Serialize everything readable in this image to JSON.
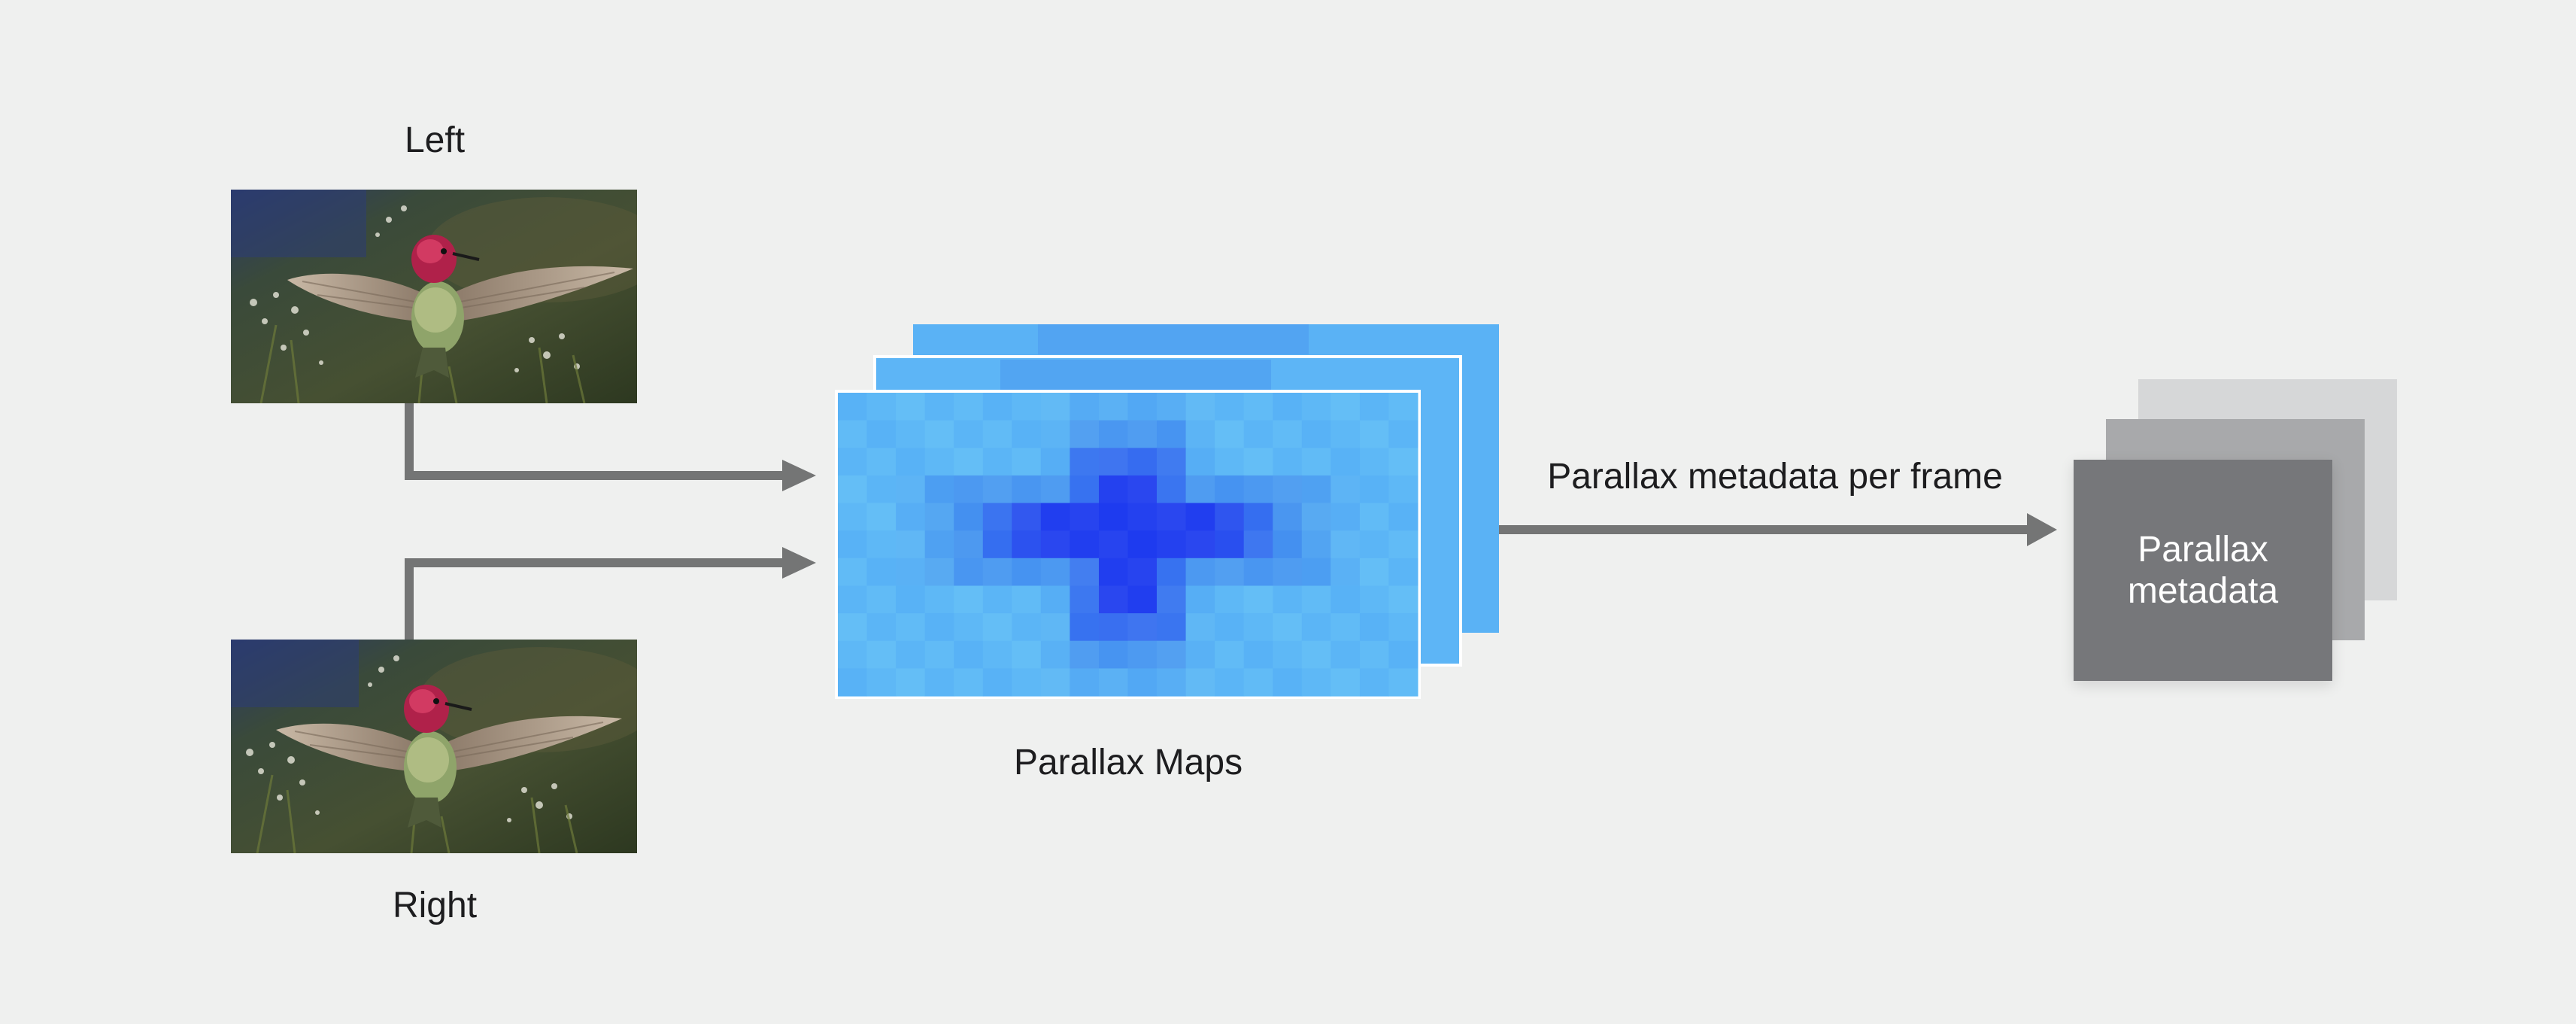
{
  "inputs": {
    "left_label": "Left",
    "right_label": "Right",
    "left_image_subject": "hummingbird photo",
    "right_image_subject": "hummingbird photo"
  },
  "maps": {
    "label": "Parallax Maps",
    "colors": {
      "light": "#5eb8f6",
      "mid": "#4a96f0",
      "deep": "#2441ef",
      "dark": "#1f2ee6"
    }
  },
  "flow": {
    "arrow_label": "Parallax metadata per frame",
    "arrow_color": "#747575"
  },
  "output": {
    "label": "Parallax\nmetadata",
    "colors": {
      "front": "#76777a",
      "middle": "#a8a9ab",
      "back": "#d6d7d8"
    }
  }
}
